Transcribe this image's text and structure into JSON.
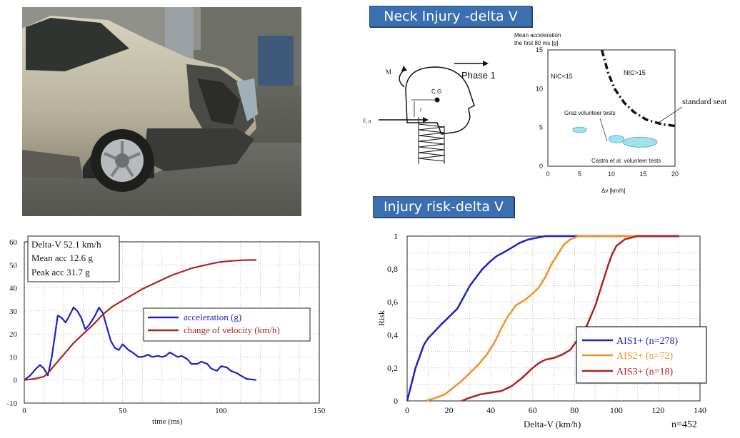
{
  "titles": {
    "neck": "Neck Injury -delta V",
    "risk": "Injury risk-delta V"
  },
  "neck_diagram": {
    "phase_label": "Phase 1",
    "m_label": "M",
    "cg_label": "C.G",
    "r_label": "r",
    "force_label": "F, a"
  },
  "chart_data": [
    {
      "type": "scatter",
      "ylabel_lines": [
        "Mean acceleration",
        "the first 80 ms [g]"
      ],
      "xlabel": "Δv [km/h]",
      "xlim": [
        0,
        20
      ],
      "ylim": [
        0,
        15
      ],
      "xticks": [
        0,
        5,
        10,
        15,
        20
      ],
      "yticks": [
        0,
        5,
        10,
        15
      ],
      "region_labels": [
        "NIC<15",
        "NIC>15"
      ],
      "boundary_curve": [
        [
          8.5,
          15
        ],
        [
          9.5,
          12
        ],
        [
          10.5,
          10
        ],
        [
          12,
          8.2
        ],
        [
          13.5,
          7
        ],
        [
          15.5,
          6
        ],
        [
          18,
          5.4
        ],
        [
          20,
          5.2
        ]
      ],
      "annotations": [
        "standard seat",
        "Graz volunteer tests",
        "Castro et al. volunteer tests"
      ],
      "ellipses": [
        {
          "name": "Graz volunteer tests",
          "cx": 5.0,
          "cy": 4.7,
          "rx": 1.1,
          "ry": 0.35
        },
        {
          "name": "Castro et al. volunteer tests",
          "cx": 10.8,
          "cy": 3.5,
          "rx": 1.2,
          "ry": 0.5
        },
        {
          "name": "Castro et al. volunteer tests",
          "cx": 14.5,
          "cy": 3.1,
          "rx": 2.7,
          "ry": 0.65
        }
      ],
      "grid": false
    },
    {
      "type": "line",
      "xlabel": "time (ms)",
      "ylabel": "",
      "xlim": [
        0,
        150
      ],
      "ylim": [
        -10,
        60
      ],
      "xticks": [
        0,
        50,
        100,
        150
      ],
      "yticks": [
        -10,
        0,
        10,
        20,
        30,
        40,
        50,
        60
      ],
      "grid": true,
      "info_lines": [
        "Delta-V 52.1 km/h",
        "Mean acc 12.6 g",
        "Peak acc 31.7 g"
      ],
      "legend_position": "center-right",
      "series": [
        {
          "name": "acceleration (g)",
          "color": "#1a22c8",
          "x": [
            0,
            3,
            6,
            8,
            10,
            12,
            14,
            16,
            17,
            19,
            21,
            23,
            25,
            27,
            29,
            31,
            33,
            36,
            38,
            40,
            42,
            44,
            46,
            48,
            50,
            53,
            55,
            58,
            60,
            63,
            65,
            68,
            70,
            72,
            74,
            76,
            78,
            80,
            83,
            85,
            88,
            90,
            93,
            95,
            98,
            100,
            103,
            105,
            108,
            111,
            113,
            118
          ],
          "y": [
            0,
            2,
            5,
            6.5,
            5,
            2,
            10,
            22,
            28,
            27,
            25,
            28,
            31.5,
            30,
            27,
            22,
            24,
            28,
            31.5,
            29,
            23,
            17,
            14,
            13,
            15.5,
            13,
            12,
            10,
            10,
            11,
            10,
            10.5,
            10,
            10.5,
            12,
            11,
            10,
            10.5,
            9,
            7,
            7,
            8,
            7,
            5,
            4,
            6,
            5.5,
            4,
            3,
            1.5,
            0.5,
            0
          ]
        },
        {
          "name": "change of velocity (km/h)",
          "color": "#b0221c",
          "x": [
            0,
            5,
            10,
            12,
            15,
            20,
            25,
            30,
            35,
            40,
            45,
            50,
            55,
            60,
            65,
            70,
            75,
            80,
            85,
            90,
            95,
            100,
            105,
            110,
            115,
            118
          ],
          "y": [
            0,
            0.5,
            1.5,
            3,
            6,
            11,
            16,
            20,
            24,
            28.5,
            32,
            34.5,
            37,
            39.5,
            41.5,
            43.5,
            45.5,
            47,
            48.5,
            49.5,
            50.5,
            51.3,
            51.7,
            52,
            52.1,
            52.1
          ]
        }
      ]
    },
    {
      "type": "line",
      "xlabel": "Delta-V (km/h)",
      "ylabel": "Risk",
      "xlim": [
        0,
        140
      ],
      "ylim": [
        0,
        1
      ],
      "xticks": [
        0,
        20,
        40,
        60,
        80,
        100,
        120,
        140
      ],
      "yticks": [
        "0",
        "0,2",
        "0,4",
        "0,6",
        "0,8",
        "1"
      ],
      "grid": true,
      "legend_position": "bottom-right",
      "sample_note": "n=452",
      "series": [
        {
          "name": "AIS1+ (n=278)",
          "color": "#1a22c8",
          "x": [
            0,
            2,
            4,
            6,
            8,
            10,
            13,
            16,
            20,
            24,
            27,
            30,
            33,
            36,
            40,
            43,
            46,
            50,
            54,
            58,
            62,
            66,
            70,
            80,
            100,
            130
          ],
          "y": [
            0,
            0.1,
            0.2,
            0.27,
            0.34,
            0.38,
            0.42,
            0.46,
            0.51,
            0.56,
            0.63,
            0.7,
            0.75,
            0.8,
            0.85,
            0.88,
            0.9,
            0.93,
            0.96,
            0.98,
            0.99,
            1.0,
            1.0,
            1.0,
            1.0,
            1.0
          ]
        },
        {
          "name": "AIS2+ (n=72)",
          "color": "#f39023",
          "x": [
            9,
            14,
            18,
            22,
            26,
            30,
            34,
            38,
            42,
            45,
            48,
            52,
            56,
            60,
            63,
            66,
            69,
            72,
            75,
            78,
            82,
            86,
            90,
            100,
            120
          ],
          "y": [
            0,
            0.02,
            0.04,
            0.08,
            0.12,
            0.17,
            0.22,
            0.28,
            0.36,
            0.44,
            0.51,
            0.58,
            0.61,
            0.65,
            0.69,
            0.75,
            0.83,
            0.89,
            0.95,
            0.98,
            1.0,
            1.0,
            1.0,
            1.0,
            1.0
          ]
        },
        {
          "name": "AIS3+ (n=18)",
          "color": "#b0221c",
          "x": [
            26,
            30,
            35,
            40,
            45,
            50,
            55,
            60,
            63,
            66,
            70,
            74,
            78,
            82,
            86,
            88,
            90,
            92,
            94,
            96,
            98,
            100,
            104,
            110,
            120,
            130
          ],
          "y": [
            0,
            0.02,
            0.04,
            0.05,
            0.06,
            0.09,
            0.14,
            0.2,
            0.23,
            0.25,
            0.26,
            0.28,
            0.31,
            0.38,
            0.46,
            0.52,
            0.58,
            0.66,
            0.74,
            0.82,
            0.89,
            0.94,
            0.98,
            1.0,
            1.0,
            1.0
          ]
        }
      ]
    }
  ]
}
